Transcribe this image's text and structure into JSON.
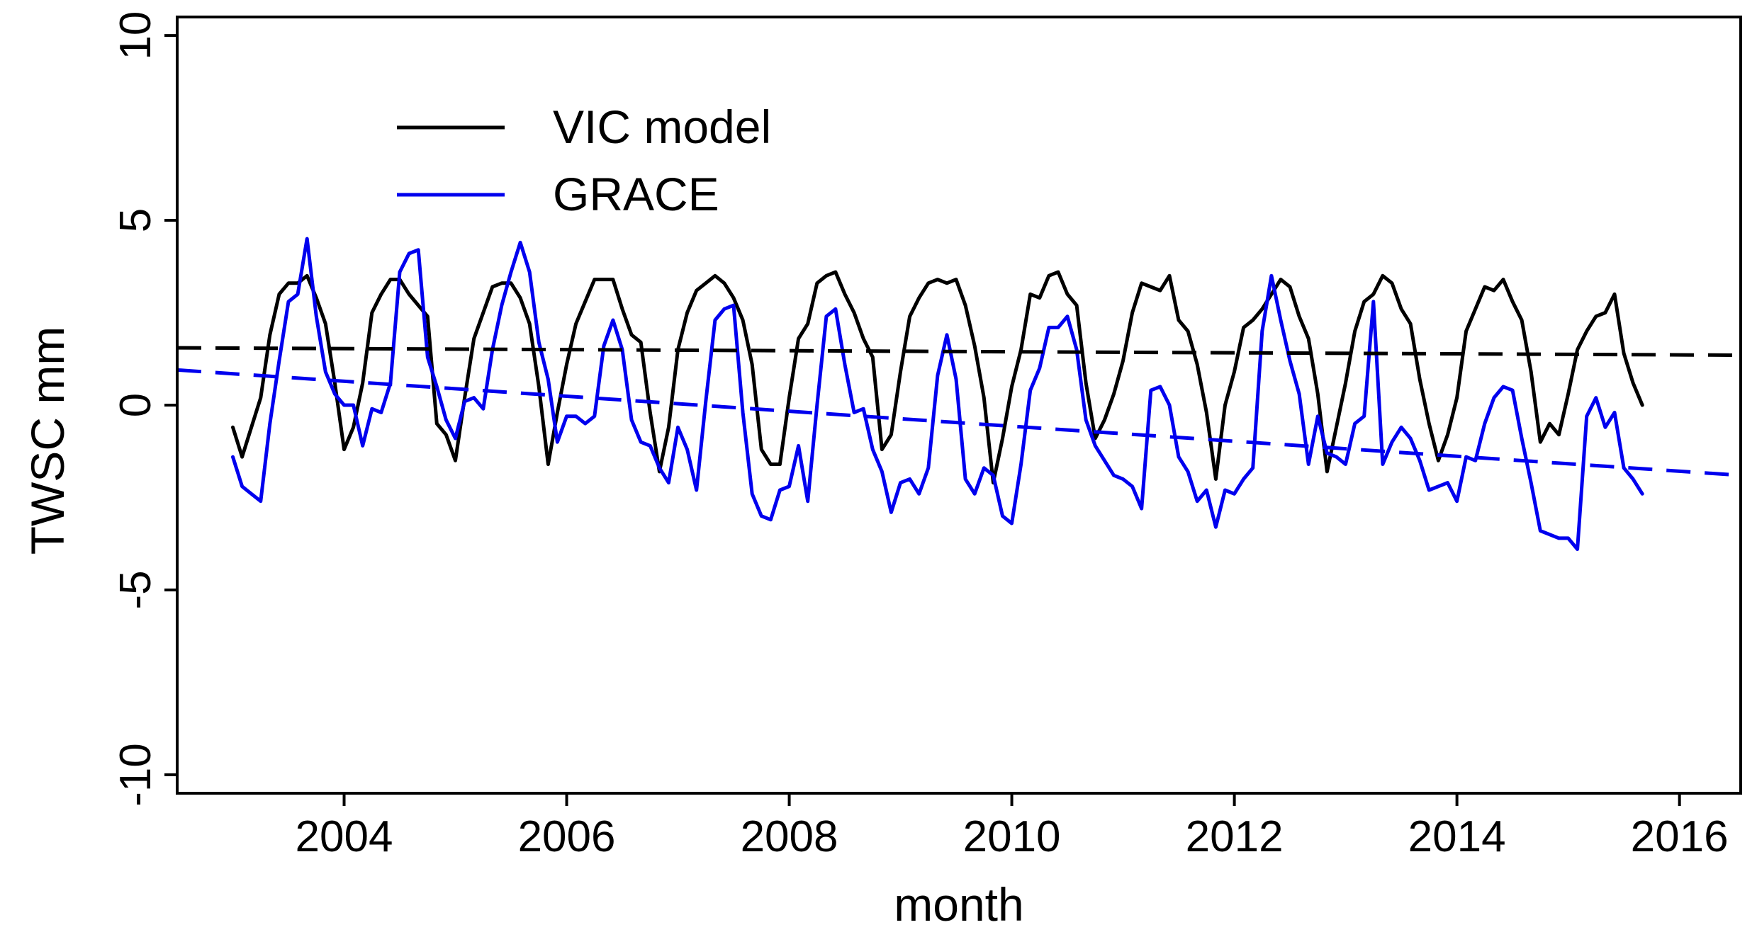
{
  "chart_data": {
    "type": "line",
    "title": "",
    "xlabel": "month",
    "ylabel": "TWSC mm",
    "xlim": [
      2002.5,
      2016.55
    ],
    "ylim": [
      -10.5,
      10.5
    ],
    "xticks": [
      2004,
      2006,
      2008,
      2010,
      2012,
      2014,
      2016
    ],
    "yticks": [
      -10,
      -5,
      0,
      5,
      10
    ],
    "legend": {
      "position": "top-left",
      "entries": [
        "VIC model",
        "GRACE"
      ]
    },
    "series": [
      {
        "name": "VIC model",
        "color": "#000000",
        "x_start": 2003.0,
        "x_step": 0.08333,
        "values": [
          -0.6,
          -1.4,
          -0.6,
          0.2,
          1.9,
          3.0,
          3.3,
          3.3,
          3.5,
          2.9,
          2.2,
          0.6,
          -1.2,
          -0.6,
          0.6,
          2.5,
          3.0,
          3.4,
          3.4,
          3.0,
          2.7,
          2.4,
          -0.5,
          -0.8,
          -1.5,
          0.2,
          1.8,
          2.5,
          3.2,
          3.3,
          3.3,
          2.9,
          2.2,
          0.5,
          -1.6,
          -0.2,
          1.1,
          2.2,
          2.8,
          3.4,
          3.4,
          3.4,
          2.6,
          1.9,
          1.7,
          -0.2,
          -1.8,
          -0.6,
          1.5,
          2.5,
          3.1,
          3.3,
          3.5,
          3.3,
          2.9,
          2.3,
          1.1,
          -1.2,
          -1.6,
          -1.6,
          0.2,
          1.8,
          2.2,
          3.3,
          3.5,
          3.6,
          3.0,
          2.5,
          1.8,
          1.3,
          -1.2,
          -0.8,
          0.9,
          2.4,
          2.9,
          3.3,
          3.4,
          3.3,
          3.4,
          2.7,
          1.6,
          0.2,
          -2.1,
          -0.9,
          0.5,
          1.5,
          3.0,
          2.9,
          3.5,
          3.6,
          3.0,
          2.7,
          0.6,
          -0.9,
          -0.4,
          0.3,
          1.2,
          2.5,
          3.3,
          3.2,
          3.1,
          3.5,
          2.3,
          2.0,
          1.1,
          -0.2,
          -2.0,
          0.0,
          0.9,
          2.1,
          2.3,
          2.6,
          3.0,
          3.4,
          3.2,
          2.4,
          1.8,
          0.3,
          -1.8,
          -0.6,
          0.6,
          2.0,
          2.8,
          3.0,
          3.5,
          3.3,
          2.6,
          2.2,
          0.7,
          -0.5,
          -1.5,
          -0.8,
          0.2,
          2.0,
          2.6,
          3.2,
          3.1,
          3.4,
          2.8,
          2.3,
          0.9,
          -1.0,
          -0.5,
          -0.8,
          0.3,
          1.5,
          2.0,
          2.4,
          2.5,
          3.0,
          1.4,
          0.6,
          0.0
        ]
      },
      {
        "name": "GRACE",
        "color": "#0000ee",
        "x_start": 2003.0,
        "x_step": 0.08333,
        "values": [
          -1.4,
          -2.2,
          -2.4,
          -2.6,
          -0.5,
          1.2,
          2.8,
          3.0,
          4.5,
          2.4,
          0.9,
          0.3,
          0.0,
          0.0,
          -1.1,
          -0.1,
          -0.2,
          0.6,
          3.6,
          4.1,
          4.2,
          1.3,
          0.5,
          -0.4,
          -0.9,
          0.1,
          0.2,
          -0.1,
          1.5,
          2.7,
          3.6,
          4.4,
          3.6,
          1.7,
          0.7,
          -1.0,
          -0.3,
          -0.3,
          -0.5,
          -0.3,
          1.6,
          2.3,
          1.5,
          -0.4,
          -1.0,
          -1.1,
          -1.7,
          -2.1,
          -0.6,
          -1.2,
          -2.3,
          0.1,
          2.3,
          2.6,
          2.7,
          -0.2,
          -2.4,
          -3.0,
          -3.1,
          -2.3,
          -2.2,
          -1.1,
          -2.6,
          0.0,
          2.4,
          2.6,
          1.1,
          -0.2,
          -0.1,
          -1.2,
          -1.8,
          -2.9,
          -2.1,
          -2.0,
          -2.4,
          -1.7,
          0.8,
          1.9,
          0.7,
          -2.0,
          -2.4,
          -1.7,
          -1.9,
          -3.0,
          -3.2,
          -1.6,
          0.4,
          1.0,
          2.1,
          2.1,
          2.4,
          1.5,
          -0.4,
          -1.1,
          -1.5,
          -1.9,
          -2.0,
          -2.2,
          -2.8,
          0.4,
          0.5,
          0.0,
          -1.4,
          -1.8,
          -2.6,
          -2.3,
          -3.3,
          -2.3,
          -2.4,
          -2.0,
          -1.7,
          2.0,
          3.5,
          2.3,
          1.2,
          0.3,
          -1.6,
          -0.3,
          -1.3,
          -1.4,
          -1.6,
          -0.5,
          -0.3,
          2.8,
          -1.6,
          -1.0,
          -0.6,
          -0.9,
          -1.5,
          -2.3,
          -2.2,
          -2.1,
          -2.6,
          -1.4,
          -1.5,
          -0.5,
          0.2,
          0.5,
          0.4,
          -0.9,
          -2.1,
          -3.4,
          -3.5,
          -3.6,
          -3.6,
          -3.9,
          -0.3,
          0.2,
          -0.6,
          -0.2,
          -1.7,
          -2.0,
          -2.4
        ]
      },
      {
        "name": "VIC model trend",
        "color": "#000000",
        "dashed": true,
        "x": [
          2002.5,
          2016.55
        ],
        "values": [
          1.55,
          1.35
        ]
      },
      {
        "name": "GRACE trend",
        "color": "#0000ee",
        "dashed": true,
        "x": [
          2002.5,
          2016.55
        ],
        "values": [
          0.95,
          -1.9
        ]
      }
    ]
  }
}
